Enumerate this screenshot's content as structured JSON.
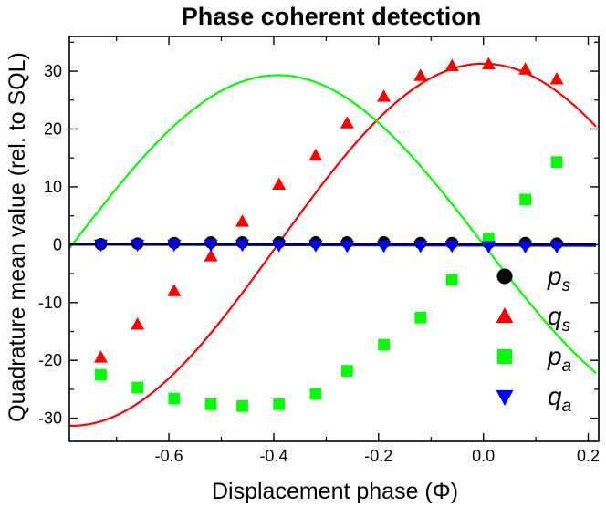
{
  "chart_data": {
    "type": "scatter",
    "title": "Phase coherent detection",
    "xlabel": "Displacement phase (Φ)",
    "ylabel": "Quadrature mean value (rel. to SQL)",
    "xlim": [
      -0.79,
      0.22
    ],
    "ylim": [
      -34,
      36
    ],
    "xticks": [
      -0.6,
      -0.4,
      -0.2,
      0.0,
      0.2
    ],
    "xtick_labels": [
      "-0.6",
      "-0.4",
      "-0.2",
      "0.0",
      "0.2"
    ],
    "yticks": [
      -30,
      -20,
      -10,
      0,
      10,
      20,
      30
    ],
    "ytick_labels": [
      "-30",
      "-20",
      "-10",
      "0",
      "10",
      "20",
      "30"
    ],
    "grid": false,
    "legend_position": "bottom-right",
    "series": [
      {
        "name": "p",
        "subscript": "s",
        "marker": "circle",
        "color": "#000000",
        "x": [
          -0.73,
          -0.66,
          -0.59,
          -0.52,
          -0.46,
          -0.39,
          -0.32,
          -0.26,
          -0.19,
          -0.12,
          -0.06,
          0.01,
          0.08,
          0.14
        ],
        "y": [
          0.1,
          0.2,
          0.3,
          0.4,
          0.4,
          0.4,
          0.4,
          0.4,
          0.4,
          0.3,
          0.3,
          0.3,
          0.3,
          0.2
        ]
      },
      {
        "name": "q",
        "subscript": "s",
        "marker": "triangle-up",
        "color": "#ff0000",
        "x": [
          -0.73,
          -0.66,
          -0.59,
          -0.52,
          -0.46,
          -0.39,
          -0.32,
          -0.26,
          -0.19,
          -0.12,
          -0.06,
          0.01,
          0.08,
          0.14
        ],
        "y": [
          -19.5,
          -13.8,
          -8.0,
          -2.0,
          4.0,
          10.4,
          15.4,
          21.0,
          25.6,
          29.2,
          30.9,
          31.2,
          30.3,
          28.6
        ]
      },
      {
        "name": "p",
        "subscript": "a",
        "marker": "square",
        "color": "#00ff00",
        "x": [
          -0.73,
          -0.66,
          -0.59,
          -0.52,
          -0.46,
          -0.39,
          -0.32,
          -0.26,
          -0.19,
          -0.12,
          -0.06,
          0.01,
          0.08,
          0.14
        ],
        "y": [
          -22.5,
          -24.7,
          -26.6,
          -27.6,
          -27.9,
          -27.6,
          -25.8,
          -21.8,
          -17.3,
          -12.6,
          -6.1,
          1.0,
          7.8,
          14.3
        ]
      },
      {
        "name": "q",
        "subscript": "a",
        "marker": "triangle-down",
        "color": "#0000ff",
        "x": [
          -0.73,
          -0.66,
          -0.59,
          -0.52,
          -0.46,
          -0.39,
          -0.32,
          -0.26,
          -0.19,
          -0.12,
          -0.06,
          0.01,
          0.08,
          0.14
        ],
        "y": [
          0.0,
          0.0,
          0.0,
          0.0,
          0.0,
          -0.1,
          -0.1,
          -0.2,
          -0.2,
          -0.2,
          -0.2,
          -0.3,
          -0.3,
          -0.3
        ]
      }
    ],
    "fits": [
      {
        "series": "q_s",
        "color": "#ff0000",
        "model": "sine",
        "amplitude": 31.3,
        "x0": 0.0,
        "period": 1.57,
        "offset": 0.0,
        "x_range": [
          -0.79,
          0.215
        ]
      },
      {
        "series": "p_a",
        "color": "#00ff00",
        "model": "sine",
        "amplitude": 29.3,
        "x0": -0.392,
        "period": 1.57,
        "offset": 0.0,
        "x_range": [
          -0.79,
          0.215
        ]
      },
      {
        "series": "q_a",
        "color": "#0000ff",
        "model": "linear",
        "points": [
          [
            -0.79,
            0.0
          ],
          [
            0.215,
            -0.2
          ]
        ]
      },
      {
        "series": "p_s",
        "color": "#000000",
        "model": "linear",
        "points": [
          [
            -0.79,
            0.1
          ],
          [
            0.215,
            0.1
          ]
        ]
      }
    ]
  }
}
